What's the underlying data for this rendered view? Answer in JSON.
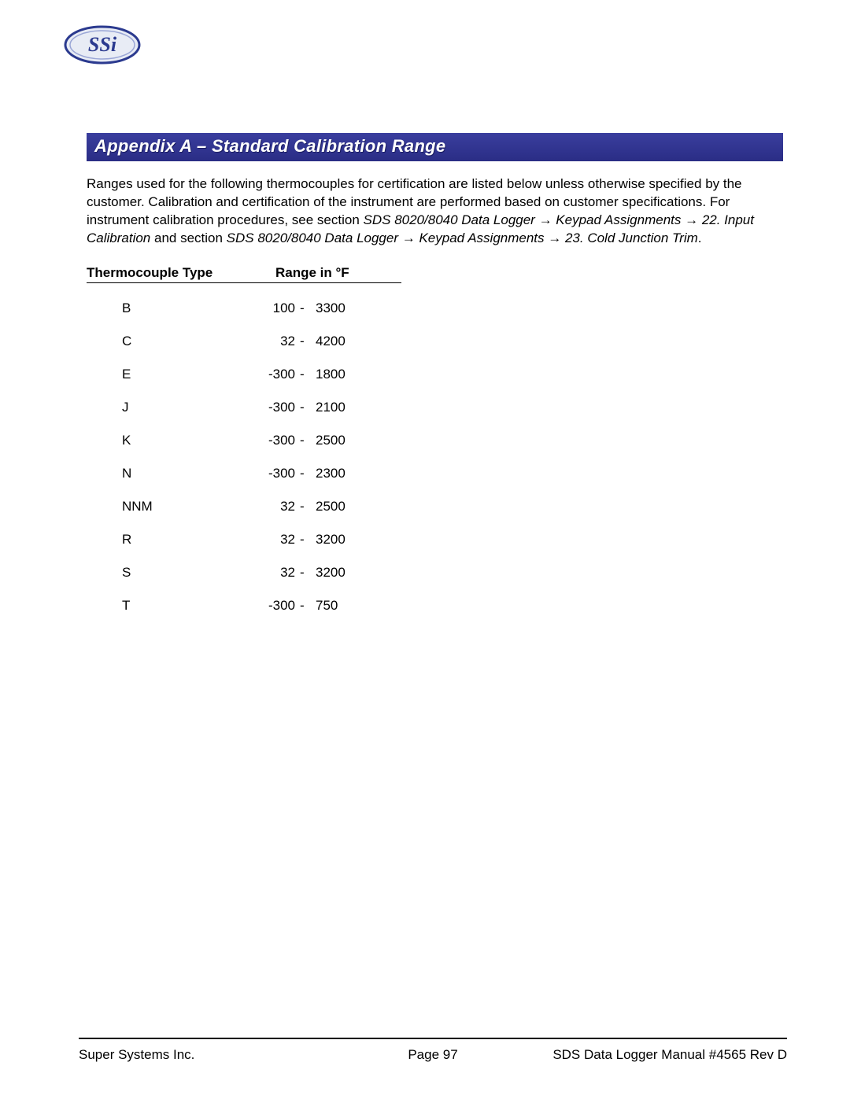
{
  "logo": {
    "text": "SSi",
    "outer_fill": "#e8ecf5",
    "outer_stroke": "#2b3a8f",
    "inner_stroke": "#6f7fc0",
    "text_fill": "#2b3a8f"
  },
  "heading": {
    "text": "Appendix A – Standard Calibration Range",
    "bg_color": "#2e3192",
    "text_color": "#ffffff",
    "font_size_pt": 16,
    "italic": true,
    "bold": true
  },
  "paragraph": {
    "plain1": "Ranges used for the following thermocouples for certification are listed below unless otherwise specified by the customer.  Calibration and certification of the instrument are performed based on customer specifications.  For instrument calibration procedures, see section ",
    "ital1": "SDS 8020/8040 Data Logger ",
    "arrow": "→",
    "ital2": " Keypad Assignments ",
    "ital3": " 22. Input Calibration",
    "plain2": " and section ",
    "ital4": "SDS 8020/8040 Data Logger ",
    "ital5": " Keypad Assignments ",
    "ital6": " 23. Cold Junction Trim",
    "period": "."
  },
  "table": {
    "headers": {
      "type": "Thermocouple Type",
      "range": "Range in °F"
    },
    "header_underline_color": "#000000",
    "font_size_pt": 12,
    "rows": [
      {
        "type": "B",
        "low": "100",
        "high": "3300"
      },
      {
        "type": "C",
        "low": "32",
        "high": "4200"
      },
      {
        "type": "E",
        "low": "-300",
        "high": "1800"
      },
      {
        "type": "J",
        "low": "-300",
        "high": "2100"
      },
      {
        "type": "K",
        "low": "-300",
        "high": "2500"
      },
      {
        "type": "N",
        "low": "-300",
        "high": "2300"
      },
      {
        "type": "NNM",
        "low": "32",
        "high": "2500"
      },
      {
        "type": "R",
        "low": "32",
        "high": "3200"
      },
      {
        "type": "S",
        "low": "32",
        "high": "3200"
      },
      {
        "type": "T",
        "low": "-300",
        "high": "750"
      }
    ],
    "separator": "-"
  },
  "footer": {
    "rule_color": "#000000",
    "left": "Super Systems Inc.",
    "center": "Page 97",
    "right": "SDS Data Logger Manual #4565 Rev D"
  }
}
